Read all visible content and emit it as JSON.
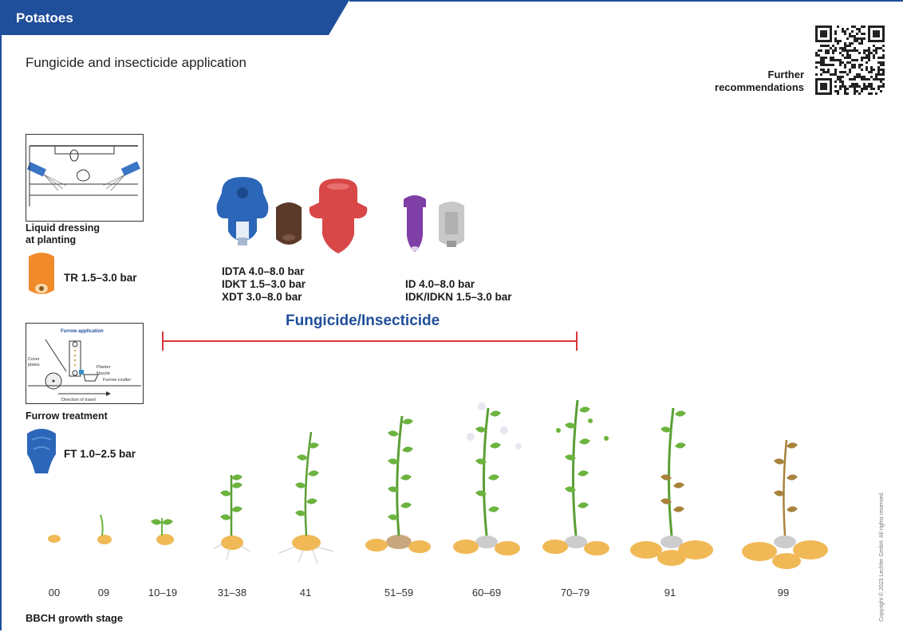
{
  "header": {
    "title": "Potatoes",
    "color": "#1f4e9a"
  },
  "subtitle": "Fungicide and insecticide application",
  "further": {
    "line1": "Further",
    "line2": "recommendations"
  },
  "left_panel": {
    "liquid_dressing": {
      "line1": "Liquid dressing",
      "line2": "at planting",
      "nozzle": "TR 1.5–3.0 bar"
    },
    "furrow_diagram": {
      "title": "Furrow application",
      "cover": "Cover",
      "plates": "plates",
      "planter": "Planter",
      "nozzle": "Nozzle",
      "coulter": "Furrow coulter",
      "direction": "Direction of travel"
    },
    "furrow_treatment": {
      "label": "Furrow treatment",
      "nozzle": "FT 1.0–2.5 bar"
    }
  },
  "nozzle_groups": [
    {
      "lines": [
        "IDTA 4.0–8.0 bar",
        "IDKT 1.5–3.0 bar",
        "XDT 3.0–8.0 bar"
      ]
    },
    {
      "lines": [
        "ID 4.0–8.0 bar",
        "IDK/IDKN 1.5–3.0 bar"
      ]
    }
  ],
  "application": {
    "label": "Fungicide/Insecticide",
    "color": "#1f4e9a",
    "range_color": "#d9343b"
  },
  "stages": [
    "00",
    "09",
    "10–19",
    "31–38",
    "41",
    "51–59",
    "60–69",
    "70–79",
    "91",
    "99"
  ],
  "stage_axis_label": "BBCH growth stage",
  "copyright": "Copyright © 2023 Lechler GmbH. All rights reserved.",
  "colors": {
    "leaf": "#6cb33f",
    "stem": "#5a9e34",
    "tuber": "#f0b955",
    "dry_leaf": "#a8823c",
    "orange_nozzle": "#f08a2a",
    "blue_nozzle": "#2c66b8",
    "brown_nozzle": "#5b3a2a",
    "red_nozzle": "#d84848",
    "purple_nozzle": "#7e3fa6",
    "grey_nozzle": "#c8c8c8"
  }
}
